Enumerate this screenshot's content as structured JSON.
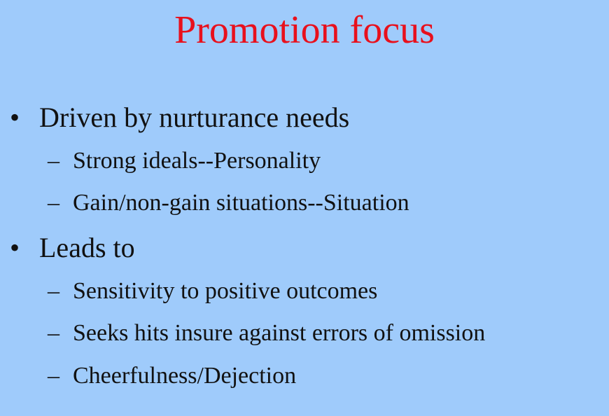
{
  "slide": {
    "title": "Promotion focus",
    "title_color": "#e8101c",
    "background_color": "#9fcbfb",
    "bullet_symbol": "•",
    "sub_symbol": "–",
    "bullets": [
      {
        "text": "Driven by nurturance needs",
        "subs": [
          "Strong ideals--Personality",
          "Gain/non-gain situations--Situation"
        ]
      },
      {
        "text": "Leads to",
        "subs": [
          "Sensitivity to positive outcomes",
          "Seeks hits insure against errors of omission",
          "Cheerfulness/Dejection"
        ]
      }
    ]
  }
}
